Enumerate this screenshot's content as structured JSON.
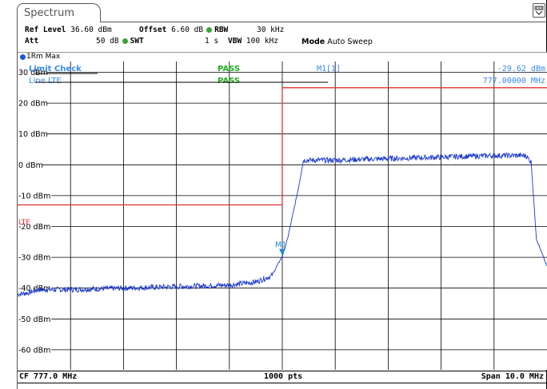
{
  "tab": {
    "label": "Spectrum"
  },
  "settings": {
    "ref_level_label": "Ref Level",
    "ref_level_value": "36.60 dBm",
    "offset_label": "Offset",
    "offset_value": "6.60 dB",
    "rbw_label": "RBW",
    "rbw_value": "30 kHz",
    "att_label": "Att",
    "att_value": "50 dB",
    "swt_label": "SWT",
    "swt_value": "1 s",
    "vbw_label": "VBW",
    "vbw_value": "100 kHz",
    "mode_label": "Mode",
    "mode_value": "Auto Sweep"
  },
  "trace": {
    "label": "1Rm Max",
    "color": "#1a5adf"
  },
  "limit_check": {
    "label": "Limit Check",
    "status": "PASS",
    "line_label": "Line LTE",
    "line_status": "PASS",
    "line_tag": "LTE"
  },
  "marker": {
    "name": "M1[1]",
    "level": "-29.62 dBm",
    "freq": "777.00000 MHz",
    "plot_tag": "M1"
  },
  "chart_data": {
    "type": "line",
    "yticks": [
      30,
      20,
      10,
      0,
      -10,
      -20,
      -30,
      -40,
      -50,
      -60
    ],
    "ytick_labels": [
      "30 dBm",
      "20 dBm",
      "10 dBm",
      "0 dBm",
      "-10 dBm",
      "-20 dBm",
      "-30 dBm",
      "-40 dBm",
      "-50 dBm",
      "-60 dBm"
    ],
    "xlim_mhz": [
      772,
      782
    ],
    "ylim_dbm": [
      -66.5,
      33.5
    ],
    "grid": true,
    "trace": {
      "x_mhz": [
        772.0,
        772.2,
        772.4,
        773.0,
        774.0,
        775.0,
        776.0,
        776.5,
        776.8,
        777.0,
        777.1,
        777.2,
        777.3,
        777.4,
        778.0,
        779.0,
        780.0,
        781.0,
        781.6,
        781.7,
        781.8,
        782.0
      ],
      "y_dbm": [
        -42,
        -41.5,
        -40.5,
        -40.5,
        -40,
        -39.5,
        -39,
        -38,
        -36,
        -29.6,
        -24,
        -16,
        -8,
        1.5,
        1.5,
        2,
        2.5,
        3,
        3,
        1,
        -24,
        -33
      ]
    },
    "limit_line": {
      "x_mhz": [
        772.0,
        777.0,
        777.0,
        782.0
      ],
      "y_dbm": [
        -13,
        -13,
        25,
        25
      ],
      "color": "#e03030"
    },
    "colors": {
      "grid": "#000000",
      "trace": "#1a3ad0",
      "limit": "#e03030",
      "pass": "#22b022",
      "info": "#3a8ae6"
    }
  },
  "status": {
    "center": "CF 777.0 MHz",
    "points": "1000 pts",
    "span": "Span 10.0 MHz"
  }
}
